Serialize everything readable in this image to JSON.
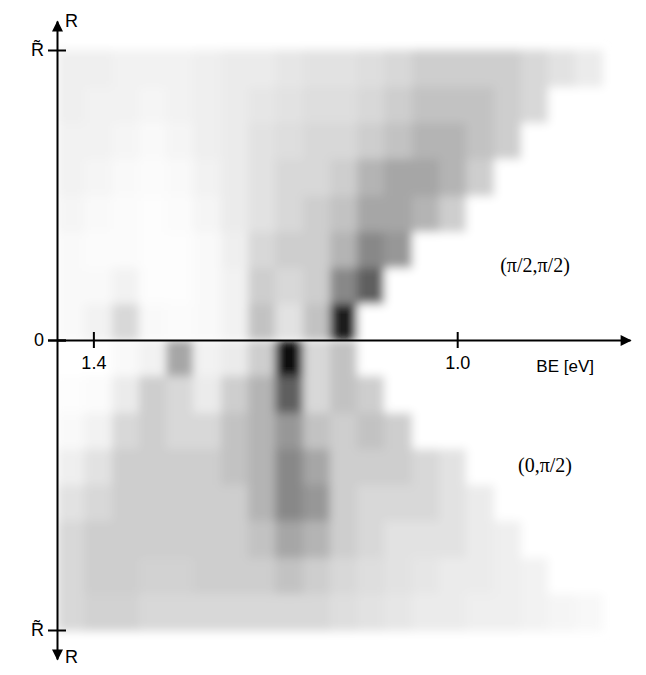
{
  "chart_data": {
    "type": "heatmap",
    "xlabel": "BE [eV]",
    "ylabel": "R",
    "xlim": [
      1.44,
      0.81
    ],
    "xticks": [
      1.4,
      {
        "value": 1.0,
        "label": "1.0"
      }
    ],
    "ylim": [
      0,
      1.1
    ],
    "yticks": [
      0,
      {
        "value": 1,
        "label": "R̃"
      }
    ],
    "zlim": [
      0,
      1
    ],
    "x_bins": [
      1.44,
      1.41,
      1.38,
      1.35,
      1.32,
      1.29,
      1.26,
      1.23,
      1.2,
      1.17,
      1.14,
      1.11,
      1.08,
      1.05,
      1.02,
      0.99,
      0.96,
      0.93,
      0.9,
      0.87,
      0.84
    ],
    "r_bins": [
      0,
      0.125,
      0.25,
      0.375,
      0.5,
      0.625,
      0.75,
      0.875,
      1.0
    ],
    "panels": [
      {
        "label": "(π/2,π/2)",
        "direction": "up",
        "cells": [
          [
            0.05,
            0.1,
            0.25,
            0.05,
            0.03,
            0.05,
            0.1,
            0.35,
            0.2,
            0.35,
            0.9,
            0,
            0,
            0,
            0,
            0,
            0,
            0,
            0,
            0
          ],
          [
            0.05,
            0.05,
            0.1,
            0.02,
            0.02,
            0.05,
            0.1,
            0.3,
            0.25,
            0.3,
            0.55,
            0.7,
            0,
            0,
            0,
            0,
            0,
            0,
            0,
            0
          ],
          [
            0.05,
            0.03,
            0.03,
            0.02,
            0.02,
            0.05,
            0.12,
            0.25,
            0.3,
            0.3,
            0.4,
            0.55,
            0.5,
            0,
            0,
            0,
            0,
            0,
            0,
            0
          ],
          [
            0.08,
            0.05,
            0.03,
            0.02,
            0.03,
            0.08,
            0.15,
            0.2,
            0.25,
            0.3,
            0.35,
            0.45,
            0.45,
            0.4,
            0.3,
            0,
            0,
            0,
            0,
            0
          ],
          [
            0.1,
            0.08,
            0.05,
            0.03,
            0.05,
            0.1,
            0.15,
            0.2,
            0.25,
            0.25,
            0.3,
            0.4,
            0.45,
            0.45,
            0.4,
            0.3,
            0,
            0,
            0,
            0
          ],
          [
            0.1,
            0.1,
            0.08,
            0.05,
            0.08,
            0.12,
            0.15,
            0.2,
            0.22,
            0.25,
            0.25,
            0.3,
            0.35,
            0.4,
            0.4,
            0.35,
            0.3,
            0,
            0,
            0
          ],
          [
            0.12,
            0.1,
            0.1,
            0.08,
            0.1,
            0.12,
            0.15,
            0.18,
            0.2,
            0.22,
            0.22,
            0.25,
            0.3,
            0.35,
            0.35,
            0.35,
            0.3,
            0.25,
            0,
            0
          ],
          [
            0.12,
            0.12,
            0.1,
            0.1,
            0.1,
            0.12,
            0.15,
            0.15,
            0.18,
            0.2,
            0.2,
            0.22,
            0.25,
            0.3,
            0.3,
            0.3,
            0.3,
            0.25,
            0.2,
            0.15
          ]
        ]
      },
      {
        "label": "(0,π/2)",
        "direction": "down",
        "cells": [
          [
            0,
            0,
            0.05,
            0.1,
            0.45,
            0.1,
            0.15,
            0.3,
            0.95,
            0.25,
            0.35,
            0,
            0,
            0,
            0,
            0,
            0,
            0,
            0,
            0
          ],
          [
            0.02,
            0.03,
            0.15,
            0.3,
            0.25,
            0.15,
            0.3,
            0.4,
            0.7,
            0.25,
            0.35,
            0.3,
            0,
            0,
            0,
            0,
            0,
            0,
            0,
            0
          ],
          [
            0.05,
            0.1,
            0.25,
            0.3,
            0.25,
            0.25,
            0.35,
            0.4,
            0.5,
            0.35,
            0.3,
            0.35,
            0.3,
            0,
            0,
            0,
            0,
            0,
            0,
            0
          ],
          [
            0.12,
            0.2,
            0.3,
            0.3,
            0.3,
            0.3,
            0.35,
            0.4,
            0.55,
            0.45,
            0.3,
            0.3,
            0.3,
            0.25,
            0.2,
            0,
            0,
            0,
            0,
            0
          ],
          [
            0.2,
            0.25,
            0.3,
            0.3,
            0.3,
            0.3,
            0.3,
            0.4,
            0.55,
            0.5,
            0.3,
            0.25,
            0.25,
            0.25,
            0.2,
            0.15,
            0,
            0,
            0,
            0
          ],
          [
            0.25,
            0.3,
            0.3,
            0.3,
            0.3,
            0.3,
            0.3,
            0.35,
            0.45,
            0.4,
            0.3,
            0.25,
            0.2,
            0.2,
            0.2,
            0.15,
            0.12,
            0,
            0,
            0
          ],
          [
            0.25,
            0.3,
            0.3,
            0.28,
            0.28,
            0.3,
            0.3,
            0.3,
            0.35,
            0.3,
            0.25,
            0.22,
            0.2,
            0.18,
            0.15,
            0.15,
            0.12,
            0.1,
            0,
            0
          ],
          [
            0.25,
            0.28,
            0.28,
            0.25,
            0.25,
            0.25,
            0.25,
            0.25,
            0.25,
            0.25,
            0.22,
            0.2,
            0.18,
            0.15,
            0.15,
            0.12,
            0.12,
            0.1,
            0.08,
            0.06
          ]
        ]
      }
    ]
  }
}
